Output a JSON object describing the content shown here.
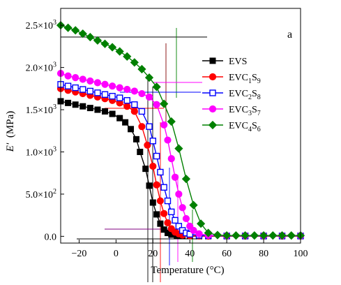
{
  "chart_data": {
    "type": "line",
    "title": "",
    "panel_label": "a",
    "xlabel": "Temperature (°C)",
    "ylabel_main": "E'",
    "ylabel_unit": "(MPa)",
    "xlim": [
      -30,
      100
    ],
    "ylim": [
      -80,
      2700
    ],
    "x_ticks": [
      -20,
      0,
      20,
      40,
      60,
      80,
      100
    ],
    "x_tick_labels": [
      "−20",
      "0",
      "20",
      "40",
      "60",
      "80",
      "100"
    ],
    "y_ticks": [
      0,
      500,
      1000,
      1500,
      2000,
      2500
    ],
    "y_tick_labels": [
      "0.0",
      "5.0×10",
      "1.0×10",
      "1.5×10",
      "2.0×10",
      "2.5×10"
    ],
    "y_tick_exponents": [
      "",
      "2",
      "3",
      "3",
      "3",
      "3"
    ],
    "legend_position": "right",
    "series": [
      {
        "name": "EVS",
        "legend_main": "EVS",
        "legend_sub1": "",
        "legend_mid": "",
        "legend_sub2": "",
        "color": "#000000",
        "marker": "square-filled",
        "x": [
          -30,
          -26,
          -22,
          -18,
          -14,
          -10,
          -6,
          -2,
          2,
          5,
          8,
          11,
          13,
          16,
          18,
          20,
          22,
          24,
          26,
          28,
          30,
          33,
          36,
          40,
          45,
          50,
          60,
          70,
          80,
          90,
          100
        ],
        "y": [
          1600,
          1580,
          1560,
          1540,
          1520,
          1500,
          1480,
          1450,
          1400,
          1350,
          1270,
          1150,
          1000,
          800,
          600,
          400,
          260,
          150,
          80,
          40,
          20,
          10,
          5,
          3,
          2,
          2,
          2,
          2,
          2,
          2,
          2
        ]
      },
      {
        "name": "EVC1S9",
        "legend_main": "EVC",
        "legend_sub1": "1",
        "legend_mid": "S",
        "legend_sub2": "9",
        "color": "#ff0000",
        "marker": "circle-filled",
        "x": [
          -30,
          -26,
          -22,
          -18,
          -14,
          -10,
          -6,
          -2,
          2,
          6,
          10,
          14,
          17,
          20,
          22,
          24,
          26,
          28,
          30,
          32,
          34,
          36,
          40,
          45,
          50,
          60,
          70,
          80,
          90,
          100
        ],
        "y": [
          1750,
          1730,
          1710,
          1690,
          1670,
          1650,
          1630,
          1610,
          1580,
          1540,
          1480,
          1300,
          1080,
          830,
          610,
          420,
          270,
          160,
          90,
          50,
          30,
          15,
          8,
          5,
          3,
          3,
          3,
          3,
          3,
          3
        ]
      },
      {
        "name": "EVC2S8",
        "legend_main": "EVC",
        "legend_sub1": "2",
        "legend_mid": "S",
        "legend_sub2": "8",
        "color": "#0000ff",
        "marker": "square-open",
        "x": [
          -30,
          -26,
          -22,
          -18,
          -14,
          -10,
          -6,
          -2,
          2,
          6,
          10,
          14,
          18,
          20,
          22,
          24,
          26,
          28,
          30,
          32,
          34,
          36,
          38,
          40,
          45,
          50,
          60,
          70,
          80,
          90,
          100
        ],
        "y": [
          1800,
          1780,
          1760,
          1740,
          1720,
          1700,
          1680,
          1660,
          1640,
          1610,
          1560,
          1480,
          1300,
          1130,
          950,
          760,
          580,
          420,
          290,
          190,
          120,
          70,
          40,
          25,
          12,
          8,
          5,
          5,
          5,
          5,
          5
        ]
      },
      {
        "name": "EVC3S7",
        "legend_main": "EVC",
        "legend_sub1": "3",
        "legend_mid": "S",
        "legend_sub2": "7",
        "color": "#ff00ff",
        "marker": "circle-filled",
        "x": [
          -30,
          -26,
          -22,
          -18,
          -14,
          -10,
          -6,
          -2,
          2,
          6,
          10,
          14,
          18,
          22,
          26,
          28,
          30,
          32,
          34,
          36,
          38,
          40,
          42,
          45,
          50,
          60,
          70,
          80,
          90,
          100
        ],
        "y": [
          1930,
          1900,
          1880,
          1860,
          1840,
          1820,
          1800,
          1780,
          1760,
          1740,
          1720,
          1690,
          1650,
          1560,
          1320,
          1140,
          920,
          700,
          500,
          340,
          210,
          120,
          70,
          30,
          12,
          8,
          8,
          8,
          8,
          8
        ]
      },
      {
        "name": "EVC4S6",
        "legend_main": "EVC",
        "legend_sub1": "4",
        "legend_mid": "S",
        "legend_sub2": "6",
        "color": "#008000",
        "marker": "diamond-filled",
        "x": [
          -30,
          -26,
          -22,
          -18,
          -14,
          -10,
          -6,
          -2,
          2,
          6,
          10,
          14,
          18,
          22,
          26,
          30,
          34,
          38,
          42,
          46,
          50,
          55,
          60,
          65,
          70,
          75,
          80,
          85,
          90,
          95,
          100
        ],
        "y": [
          2500,
          2470,
          2440,
          2400,
          2360,
          2320,
          2280,
          2240,
          2190,
          2130,
          2060,
          1980,
          1880,
          1770,
          1570,
          1360,
          1040,
          680,
          370,
          150,
          40,
          15,
          10,
          10,
          10,
          10,
          10,
          10,
          10,
          10,
          10
        ]
      }
    ]
  }
}
